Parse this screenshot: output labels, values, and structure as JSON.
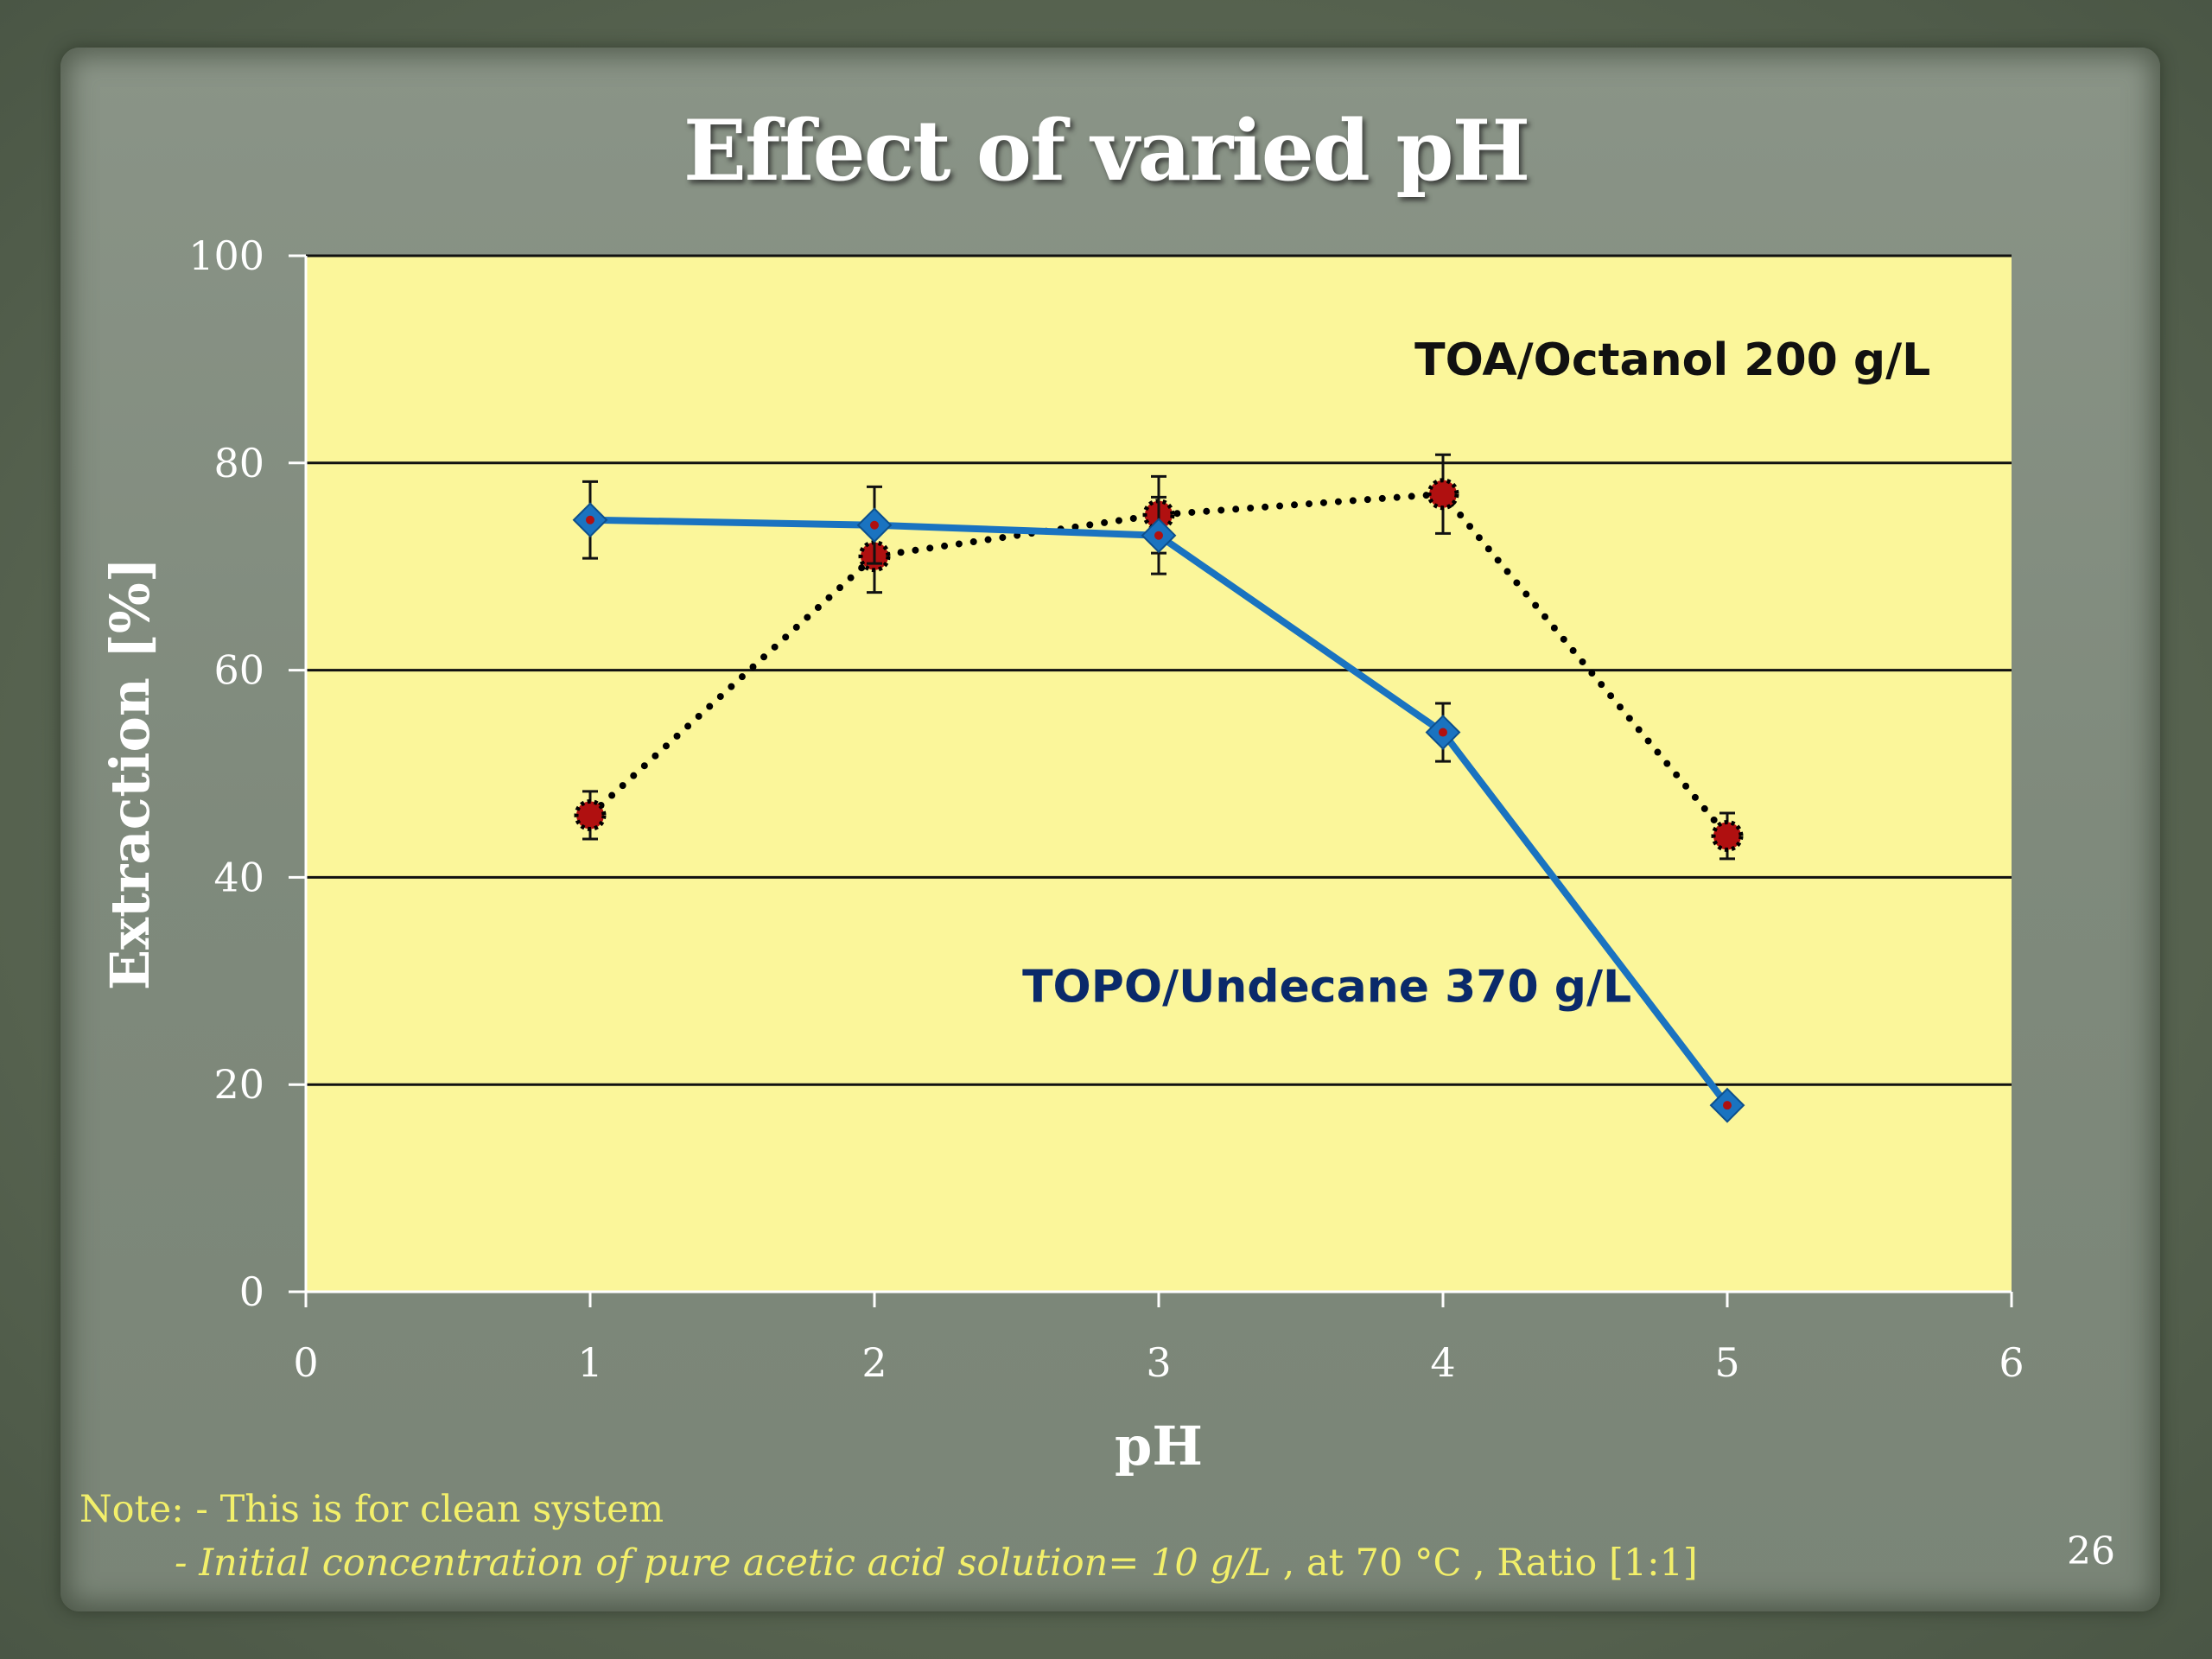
{
  "slide": {
    "title": "Effect of varied pH",
    "page_number": "26",
    "note_line_1": "Note: - This is for clean system",
    "note_line_2_italic": "- Initial concentration of pure acetic acid solution= 10 g/L",
    "note_line_2_rest": " ,  at 70 °C , Ratio [1:1]"
  },
  "colors": {
    "plot_background": "#fbf69a",
    "topo_line": "#1a73c0",
    "toa_marker": "#b01010",
    "topo_label": "#0a2a6a",
    "toa_label": "#111111",
    "note_text": "#f2ef6a"
  },
  "chart_data": {
    "type": "line",
    "title": "Effect of varied pH",
    "xlabel": "pH",
    "ylabel": "Extraction [%]",
    "xlim": [
      0,
      6
    ],
    "ylim": [
      0,
      100
    ],
    "x_ticks": [
      "0",
      "1",
      "2",
      "3",
      "4",
      "5",
      "6"
    ],
    "y_ticks": [
      "0",
      "20",
      "40",
      "60",
      "80",
      "100"
    ],
    "grid": "horizontal",
    "series": [
      {
        "name": "TOPO/Undecane 370 g/L",
        "style": "solid",
        "marker": "diamond",
        "x": [
          1,
          2,
          3,
          4,
          5
        ],
        "y": [
          74.5,
          74,
          73,
          54,
          18
        ],
        "err": [
          3.7,
          3.7,
          3.7,
          2.8,
          0.6
        ]
      },
      {
        "name": "TOA/Octanol 200 g/L",
        "style": "dotted",
        "marker": "circle",
        "x": [
          1,
          2,
          3,
          4,
          5
        ],
        "y": [
          46,
          71,
          75,
          77,
          44
        ],
        "err": [
          2.3,
          3.5,
          3.7,
          3.8,
          2.2
        ]
      }
    ],
    "annotations": [
      {
        "text": "TOA/Octanol 200 g/L",
        "series": 1
      },
      {
        "text": "TOPO/Undecane 370 g/L",
        "series": 0
      }
    ]
  }
}
